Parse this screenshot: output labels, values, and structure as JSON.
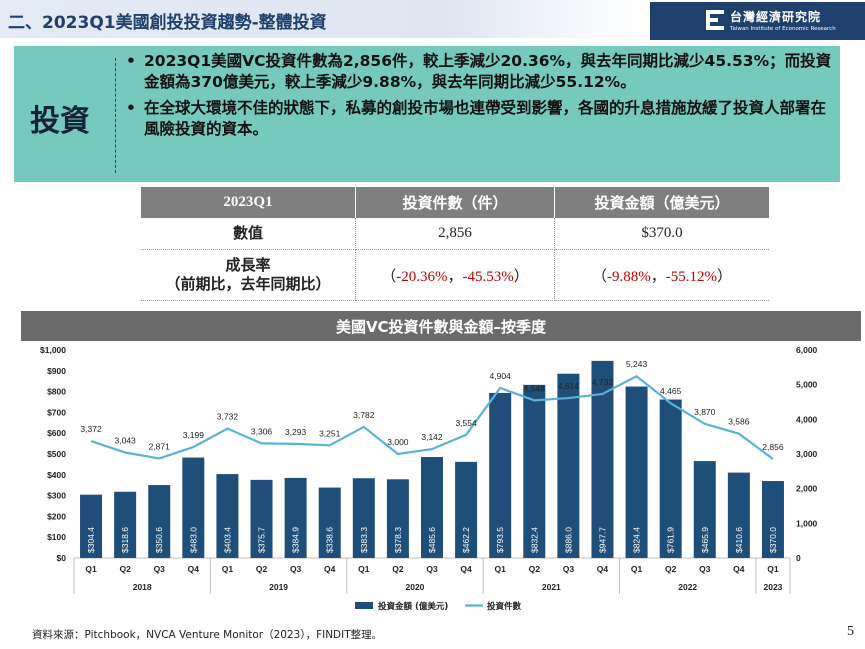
{
  "header": {
    "title": "二、2023Q1美國創投投資趨勢-整體投資",
    "logo_cn": "台灣經濟研究院",
    "logo_en": "Taiwan Institute of Economic Research"
  },
  "summary": {
    "label": "投資",
    "bullets": [
      "2023Q1美國VC投資件數為2,856件，較上季減少20.36%，與去年同期比減少45.53%；而投資金額為370億美元，較上季減少9.88%，與去年同期比減少55.12%。",
      "在全球大環境不佳的狀態下，私募的創投市場也連帶受到影響，各國的升息措施放緩了投資人部署在風險投資的資本。"
    ]
  },
  "table": {
    "headers": [
      "2023Q1",
      "投資件數（件）",
      "投資金額（億美元）"
    ],
    "row1": {
      "label": "數值",
      "count": "2,856",
      "amount": "$370.0"
    },
    "row2": {
      "label_line1": "成長率",
      "label_line2": "（前期比，去年同期比）",
      "paren_open": "（",
      "paren_close": "）",
      "sep": "，",
      "count_qoq": "-20.36%",
      "count_yoy": "-45.53%",
      "amount_qoq": "-9.88%",
      "amount_yoy": "-55.12%"
    }
  },
  "chart_title": "美國VC投資件數與金額–按季度",
  "chart_data": {
    "type": "bar+line",
    "quarters": [
      "Q1",
      "Q2",
      "Q3",
      "Q4",
      "Q1",
      "Q2",
      "Q3",
      "Q4",
      "Q1",
      "Q2",
      "Q3",
      "Q4",
      "Q1",
      "Q2",
      "Q3",
      "Q4",
      "Q1",
      "Q2",
      "Q3",
      "Q4",
      "Q1"
    ],
    "years": [
      {
        "label": "2018",
        "start": 0,
        "end": 3
      },
      {
        "label": "2019",
        "start": 4,
        "end": 7
      },
      {
        "label": "2020",
        "start": 8,
        "end": 11
      },
      {
        "label": "2021",
        "start": 12,
        "end": 15
      },
      {
        "label": "2022",
        "start": 16,
        "end": 19
      },
      {
        "label": "2023",
        "start": 20,
        "end": 20
      }
    ],
    "series": [
      {
        "name": "投資金額 (億美元)",
        "type": "bar",
        "axis": "left",
        "values": [
          304.4,
          318.6,
          350.6,
          483.0,
          403.4,
          375.7,
          384.9,
          338.6,
          383.3,
          378.3,
          485.6,
          462.2,
          793.5,
          832.4,
          886.0,
          947.7,
          824.4,
          761.9,
          465.9,
          410.6,
          370.0
        ],
        "labels": [
          "$304.4",
          "$318.6",
          "$350.6",
          "$483.0",
          "$403.4",
          "$375.7",
          "$384.9",
          "$338.6",
          "$383.3",
          "$378.3",
          "$485.6",
          "$462.2",
          "$793.5",
          "$832.4",
          "$886.0",
          "$947.7",
          "$824.4",
          "$761.9",
          "$465.9",
          "$410.6",
          "$370.0"
        ]
      },
      {
        "name": "投資件數",
        "type": "line",
        "axis": "right",
        "values": [
          3372,
          3043,
          2871,
          3199,
          3732,
          3306,
          3293,
          3251,
          3782,
          3000,
          3142,
          3554,
          4904,
          4548,
          4614,
          4732,
          5243,
          4465,
          3870,
          3586,
          2856
        ],
        "labels": [
          "3,372",
          "3,043",
          "2,871",
          "3,199",
          "3,732",
          "3,306",
          "3,293",
          "3,251",
          "3,782",
          "3,000",
          "3,142",
          "3,554",
          "4,904",
          "4,548",
          "4,614",
          "4,732",
          "5,243",
          "4,465",
          "3,870",
          "3,586",
          "2,856"
        ]
      }
    ],
    "left_axis": {
      "min": 0,
      "max": 1000,
      "ticks": [
        "$0",
        "$100",
        "$200",
        "$300",
        "$400",
        "$500",
        "$600",
        "$700",
        "$800",
        "$900",
        "$1,000"
      ]
    },
    "right_axis": {
      "min": 0,
      "max": 6000,
      "ticks": [
        "0",
        "1,000",
        "2,000",
        "3,000",
        "4,000",
        "5,000",
        "6,000"
      ]
    },
    "legend_position": "bottom",
    "colors": {
      "bar": "#1f4e79",
      "line": "#5bb1d6"
    }
  },
  "source": "資料來源：Pitchbook，NVCA Venture Monitor（2023），FINDIT整理。",
  "page_number": "5"
}
